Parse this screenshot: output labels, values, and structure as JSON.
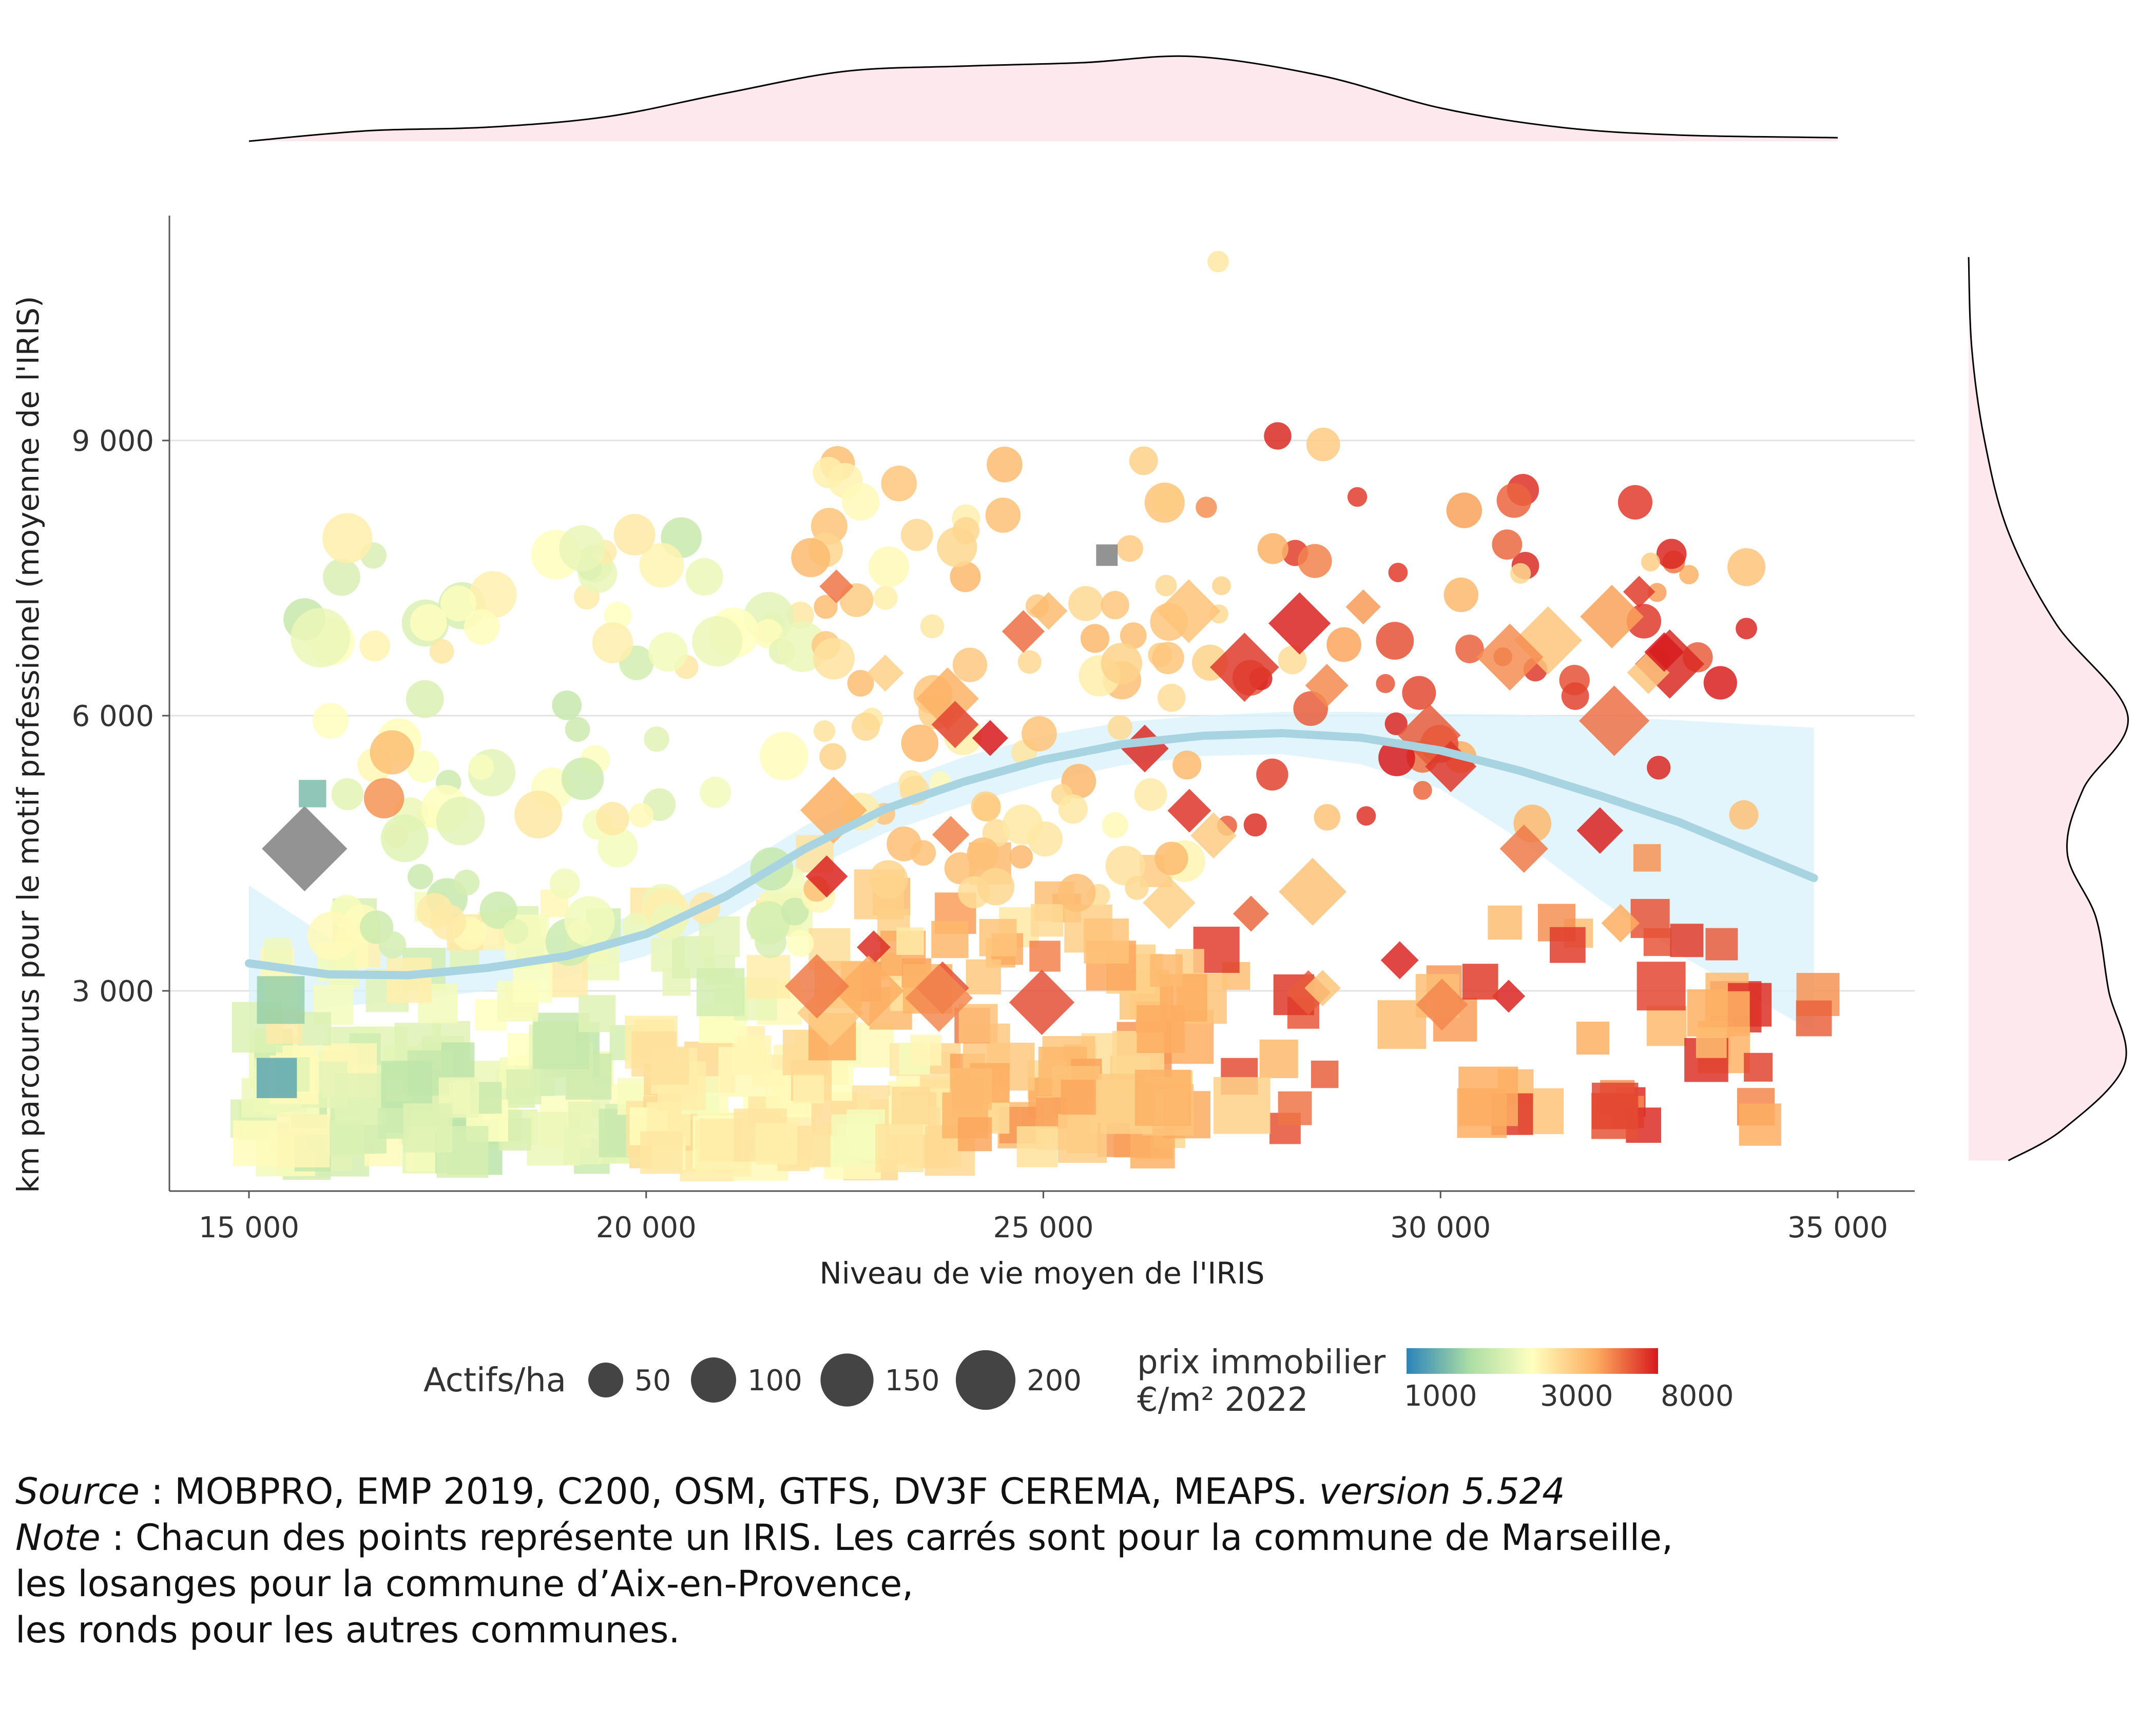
{
  "chart_data": {
    "type": "scatter",
    "xlabel": "Niveau de vie moyen de l'IRIS",
    "ylabel": "km parcourus pour le motif professionel (moyenne de l'IRIS)",
    "xlim": [
      14000,
      36000
    ],
    "ylim": [
      800,
      11400
    ],
    "x_ticks": [
      15000,
      20000,
      25000,
      30000,
      35000
    ],
    "x_tick_labels": [
      "15 000",
      "20 000",
      "25 000",
      "30 000",
      "35 000"
    ],
    "y_ticks": [
      3000,
      6000,
      9000
    ],
    "y_tick_labels": [
      "3 000",
      "6 000",
      "9 000"
    ],
    "grid": "horizontal",
    "shapes": {
      "square": "Marseille",
      "diamond": "Aix-en-Provence",
      "circle": "autres communes"
    },
    "trend": {
      "color": "#a8d4e2",
      "ribbon_color": "#d9f1fb",
      "x": [
        15000,
        16000,
        17000,
        18000,
        19000,
        20000,
        21000,
        22000,
        23000,
        24000,
        25000,
        26000,
        27000,
        28000,
        29000,
        30000,
        31000,
        32000,
        33000,
        34000,
        34700
      ],
      "y": [
        3300,
        3180,
        3170,
        3250,
        3380,
        3620,
        4030,
        4550,
        4980,
        5280,
        5520,
        5690,
        5780,
        5810,
        5760,
        5620,
        5400,
        5130,
        4840,
        4480,
        4230
      ],
      "lower": [
        2480,
        2820,
        2900,
        3000,
        3150,
        3380,
        3800,
        4300,
        4720,
        5020,
        5280,
        5460,
        5560,
        5580,
        5470,
        5200,
        4650,
        4000,
        3400,
        2900,
        2550
      ],
      "upper": [
        4150,
        3580,
        3440,
        3500,
        3620,
        3860,
        4260,
        4800,
        5230,
        5550,
        5780,
        5930,
        6000,
        6040,
        6040,
        6020,
        6010,
        5990,
        5950,
        5900,
        5870
      ]
    },
    "points_groups": [
      {
        "shape": "square",
        "region": [
          15000,
          20000,
          1200,
          2500
        ],
        "count": 110,
        "price": [
          1600,
          2700
        ],
        "size": [
          40,
          180
        ]
      },
      {
        "shape": "square",
        "region": [
          20000,
          24000,
          1200,
          2500
        ],
        "count": 90,
        "price": [
          2300,
          3400
        ],
        "size": [
          40,
          180
        ]
      },
      {
        "shape": "square",
        "region": [
          24000,
          27000,
          1300,
          2500
        ],
        "count": 50,
        "price": [
          3000,
          5000
        ],
        "size": [
          40,
          180
        ]
      },
      {
        "shape": "square",
        "region": [
          27000,
          34800,
          1500,
          3800
        ],
        "count": 45,
        "price": [
          3800,
          7500
        ],
        "size": [
          30,
          150
        ]
      },
      {
        "shape": "square",
        "region": [
          15000,
          22000,
          2500,
          4000
        ],
        "count": 50,
        "price": [
          1800,
          3000
        ],
        "size": [
          30,
          140
        ]
      },
      {
        "shape": "square",
        "region": [
          22000,
          27000,
          2500,
          4500
        ],
        "count": 45,
        "price": [
          2800,
          5500
        ],
        "size": [
          30,
          140
        ]
      },
      {
        "shape": "circle",
        "region": [
          16000,
          22000,
          3500,
          8000
        ],
        "count": 95,
        "price": [
          1700,
          3000
        ],
        "size": [
          20,
          140
        ]
      },
      {
        "shape": "circle",
        "region": [
          22000,
          27000,
          4000,
          8800
        ],
        "count": 85,
        "price": [
          2600,
          4200
        ],
        "size": [
          15,
          90
        ]
      },
      {
        "shape": "circle",
        "region": [
          27000,
          34000,
          4800,
          9000
        ],
        "count": 55,
        "price": [
          3200,
          8000
        ],
        "size": [
          10,
          70
        ]
      },
      {
        "shape": "diamond",
        "region": [
          22000,
          33000,
          2600,
          7600
        ],
        "count": 42,
        "price": [
          3500,
          8000
        ],
        "size": [
          20,
          150
        ]
      }
    ],
    "points": [
      {
        "x": 15700,
        "y": 4550,
        "shape": "diamond",
        "price": 0,
        "size": 230
      },
      {
        "x": 15700,
        "y": 7050,
        "shape": "circle",
        "price": 1700,
        "size": 90
      },
      {
        "x": 15900,
        "y": 6850,
        "shape": "circle",
        "price": 2200,
        "size": 200
      },
      {
        "x": 15800,
        "y": 5150,
        "shape": "square",
        "price": 1150,
        "size": 30
      },
      {
        "x": 15350,
        "y": 2050,
        "shape": "square",
        "price": 1000,
        "size": 80
      },
      {
        "x": 15400,
        "y": 2900,
        "shape": "square",
        "price": 1300,
        "size": 120
      },
      {
        "x": 16800,
        "y": 5600,
        "shape": "circle",
        "price": 4000,
        "size": 100
      },
      {
        "x": 16700,
        "y": 5100,
        "shape": "circle",
        "price": 5000,
        "size": 80
      },
      {
        "x": 27200,
        "y": 10950,
        "shape": "circle",
        "price": 3000,
        "size": 15
      },
      {
        "x": 27950,
        "y": 9050,
        "shape": "circle",
        "price": 7500,
        "size": 30
      },
      {
        "x": 33850,
        "y": 6950,
        "shape": "circle",
        "price": 7500,
        "size": 15
      },
      {
        "x": 32500,
        "y": 7350,
        "shape": "diamond",
        "price": 7000,
        "size": 20
      },
      {
        "x": 31050,
        "y": 4550,
        "shape": "diamond",
        "price": 5500,
        "size": 60
      },
      {
        "x": 34700,
        "y": 2700,
        "shape": "square",
        "price": 6000,
        "size": 60
      },
      {
        "x": 33100,
        "y": 3550,
        "shape": "square",
        "price": 7000,
        "size": 50
      },
      {
        "x": 32600,
        "y": 4450,
        "shape": "square",
        "price": 5000,
        "size": 30
      },
      {
        "x": 31600,
        "y": 3500,
        "shape": "square",
        "price": 7000,
        "size": 60
      },
      {
        "x": 30500,
        "y": 3100,
        "shape": "square",
        "price": 7000,
        "size": 60
      },
      {
        "x": 30600,
        "y": 1850,
        "shape": "square",
        "price": 4500,
        "size": 200
      },
      {
        "x": 27500,
        "y": 1750,
        "shape": "square",
        "price": 3500,
        "size": 180
      },
      {
        "x": 22800,
        "y": 3000,
        "shape": "diamond",
        "price": 4500,
        "size": 150
      },
      {
        "x": 22150,
        "y": 3050,
        "shape": "diamond",
        "price": 5500,
        "size": 120
      },
      {
        "x": 25800,
        "y": 7750,
        "shape": "square",
        "price": 0,
        "size": 15
      }
    ]
  },
  "legend": {
    "size_title": "Actifs/ha",
    "size_items": [
      {
        "label": "50",
        "value": 50
      },
      {
        "label": "100",
        "value": 100
      },
      {
        "label": "150",
        "value": 150
      },
      {
        "label": "200",
        "value": 200
      }
    ],
    "color_title_line1": "prix immobilier",
    "color_title_line2": "€/m² 2022",
    "color_labels": [
      "1000",
      "3000",
      "8000"
    ],
    "color_stops": [
      "#2b83ba",
      "#abdda4",
      "#ffffbf",
      "#fdae61",
      "#d7191c"
    ],
    "na_color": "#808080"
  },
  "marginals": {
    "fill": "#fde8ee",
    "line": "#000000"
  },
  "caption": {
    "source_label": "Source",
    "source_text": " : MOBPRO, EMP 2019, C200, OSM, GTFS, DV3F CEREMA, MEAPS. ",
    "version": "version 5.524",
    "note_label": "Note",
    "note_text": " : Chacun des points représente un IRIS. Les carrés sont pour la commune de Marseille,",
    "line3": "les losanges pour la commune d’Aix-en-Provence,",
    "line4": "les ronds pour les autres communes."
  }
}
